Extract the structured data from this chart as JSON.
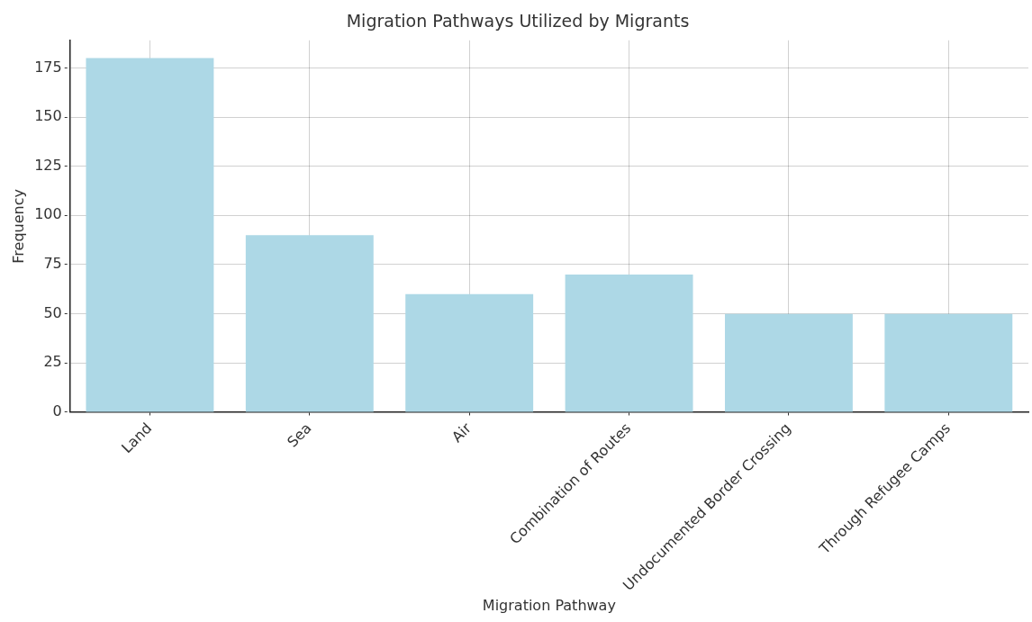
{
  "chart_data": {
    "type": "bar",
    "title": "Migration Pathways Utilized by Migrants",
    "xlabel": "Migration Pathway",
    "ylabel": "Frequency",
    "categories": [
      "Land",
      "Sea",
      "Air",
      "Combination of Routes",
      "Undocumented Border Crossing",
      "Through Refugee Camps"
    ],
    "values": [
      180,
      90,
      60,
      70,
      50,
      50
    ],
    "color": "#add8e6",
    "ylim": [
      0,
      189
    ],
    "yticks": [
      0,
      25,
      50,
      75,
      100,
      125,
      150,
      175
    ],
    "grid": true,
    "legend": false
  }
}
